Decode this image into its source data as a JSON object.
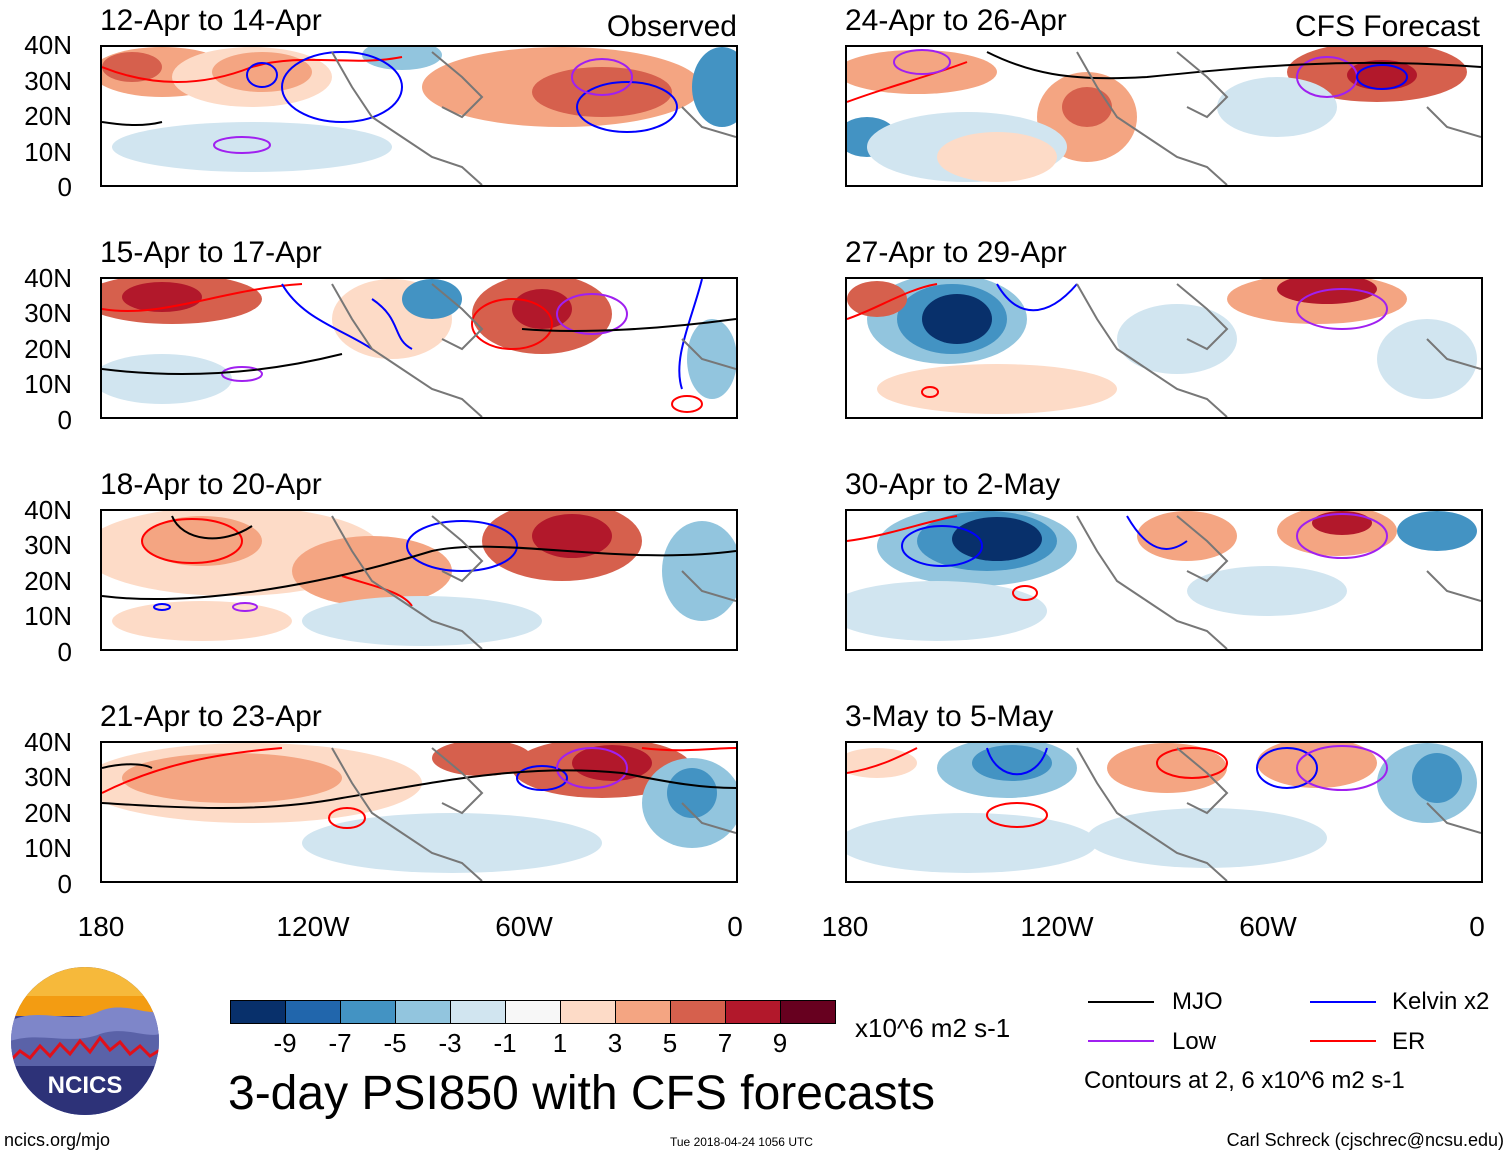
{
  "panels": [
    {
      "title": "12-Apr to 14-Apr",
      "label": "Observed"
    },
    {
      "title": "24-Apr to 26-Apr",
      "label": "CFS Forecast"
    },
    {
      "title": "15-Apr to 17-Apr",
      "label": ""
    },
    {
      "title": "27-Apr to 29-Apr",
      "label": ""
    },
    {
      "title": "18-Apr to 20-Apr",
      "label": ""
    },
    {
      "title": "30-Apr to 2-May",
      "label": ""
    },
    {
      "title": "21-Apr to 23-Apr",
      "label": ""
    },
    {
      "title": "3-May to 5-May",
      "label": ""
    }
  ],
  "y_axis_labels": [
    "40N",
    "30N",
    "20N",
    "10N",
    "0"
  ],
  "x_axis_labels": [
    "180",
    "120W",
    "60W",
    "0"
  ],
  "colorbar": {
    "colors": [
      "#08306b",
      "#2166ac",
      "#4393c3",
      "#92c5de",
      "#d1e5f0",
      "#f7f7f7",
      "#fddbc7",
      "#f4a582",
      "#d6604d",
      "#b2182b",
      "#67001f"
    ],
    "labels": [
      "-9",
      "-7",
      "-5",
      "-3",
      "-1",
      "1",
      "3",
      "5",
      "7",
      "9"
    ],
    "units": "x10^6 m2 s-1"
  },
  "main_title": "3-day PSI850 with CFS forecasts",
  "legend": {
    "items": [
      {
        "label": "MJO",
        "color": "#000000"
      },
      {
        "label": "Kelvin x2",
        "color": "#0000ff"
      },
      {
        "label": "Low",
        "color": "#a020f0"
      },
      {
        "label": "ER",
        "color": "#ff0000"
      }
    ],
    "note": "Contours at 2, 6 x10^6 m2 s-1"
  },
  "logo_text": "NCICS",
  "footer": {
    "left": "ncics.org/mjo",
    "center": "Tue 2018-04-24 1056 UTC",
    "right": "Carl Schreck (cjschrec@ncsu.edu)"
  }
}
